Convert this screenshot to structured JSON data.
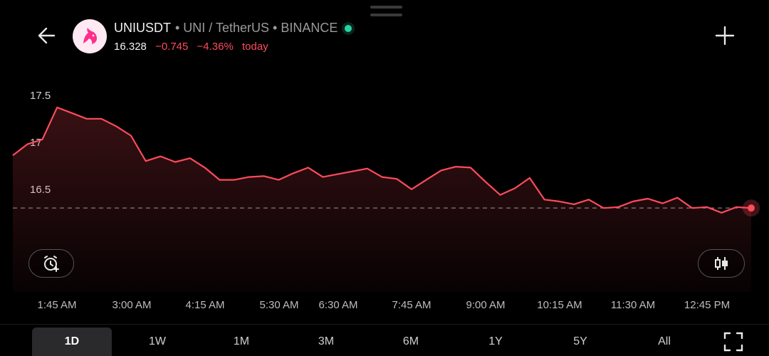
{
  "header": {
    "symbol": "UNIUSDT",
    "description": "• UNI / TetherUS • BINANCE",
    "price": "16.328",
    "change": "−0.745",
    "change_pct": "−4.36%",
    "period": "today",
    "status_color": "#2ad1a2"
  },
  "icons": {
    "back": "arrow-left-icon",
    "logo": "uniswap-unicorn-icon",
    "add": "plus-icon",
    "alert": "alarm-add-icon",
    "chart_style": "candlestick-icon",
    "fullscreen": "fullscreen-icon"
  },
  "chart_data": {
    "type": "area",
    "line_color": "#ff4b5c",
    "y_ticks": [
      "17.5",
      "17",
      "16.5"
    ],
    "x_ticks": [
      "1:45 AM",
      "3:00 AM",
      "4:15 AM",
      "5:30 AM",
      "6:30 AM",
      "7:45 AM",
      "9:00 AM",
      "10:15 AM",
      "11:30 AM",
      "12:45 PM"
    ],
    "ylim": [
      16.0,
      17.6
    ],
    "reference_line": 16.37,
    "values": [
      16.93,
      17.05,
      17.1,
      17.44,
      17.38,
      17.32,
      17.32,
      17.24,
      17.14,
      16.87,
      16.92,
      16.86,
      16.9,
      16.8,
      16.67,
      16.67,
      16.7,
      16.71,
      16.67,
      16.74,
      16.8,
      16.7,
      16.73,
      16.76,
      16.79,
      16.7,
      16.68,
      16.57,
      16.67,
      16.77,
      16.81,
      16.8,
      16.65,
      16.51,
      16.58,
      16.69,
      16.46,
      16.44,
      16.41,
      16.46,
      16.37,
      16.38,
      16.44,
      16.47,
      16.42,
      16.48,
      16.37,
      16.38,
      16.32,
      16.38,
      16.37
    ]
  },
  "tabs": [
    {
      "label": "1D"
    },
    {
      "label": "1W"
    },
    {
      "label": "1M"
    },
    {
      "label": "3M"
    },
    {
      "label": "6M"
    },
    {
      "label": "1Y"
    },
    {
      "label": "5Y"
    },
    {
      "label": "All"
    }
  ]
}
